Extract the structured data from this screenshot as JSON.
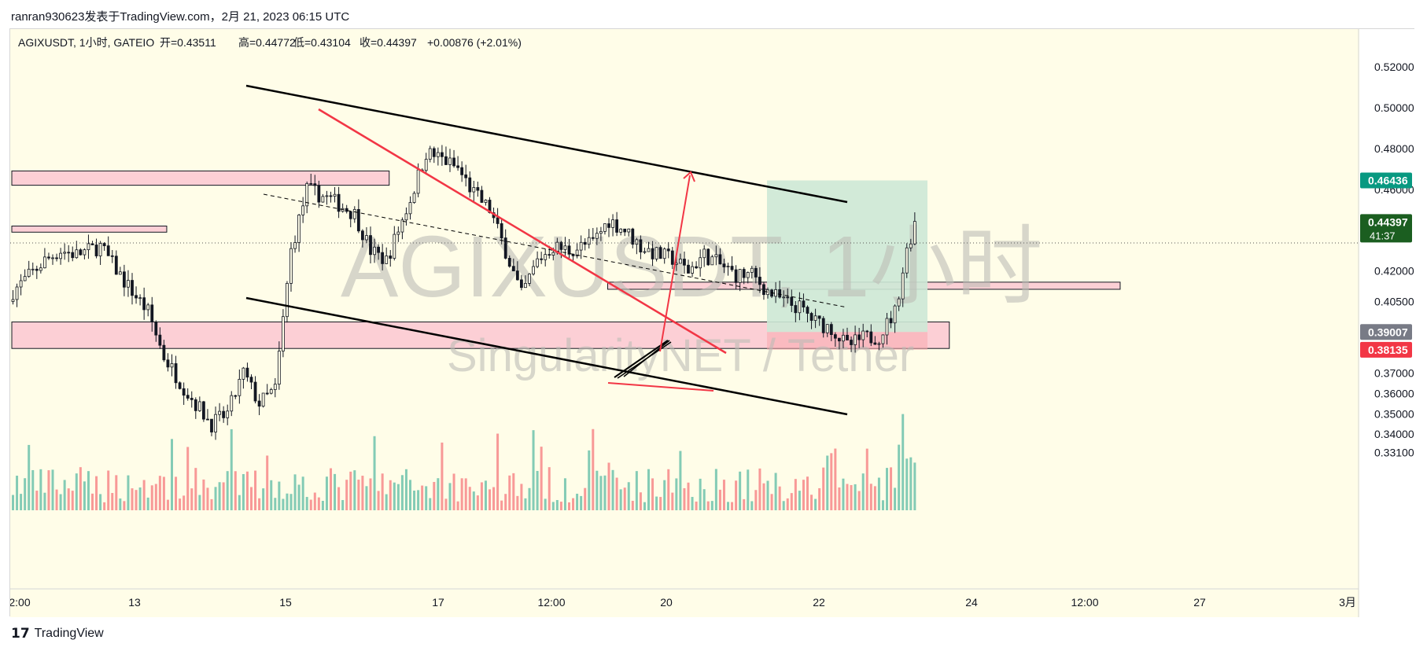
{
  "header": {
    "caption": "ranran930623发表于TradingView.com，2月 21, 2023 06:15 UTC"
  },
  "legend": {
    "symbol": "AGIXUSDT, 1小时, GATEIO",
    "open": "开=0.43511",
    "high": "高=0.44772",
    "low": "低=0.43104",
    "close": "收=0.44397",
    "change": "+0.00876 (+2.01%)"
  },
  "watermark": {
    "main": "AGIXUSDT, 1小时",
    "sub": "SingularityNET / Tether"
  },
  "price_labels": [
    {
      "text": "0.46436",
      "color": "#089981"
    },
    {
      "text": "0.44397",
      "color": "#1b5e20",
      "sub": "41:37"
    },
    {
      "text": "0.39007",
      "color": "#787b86"
    },
    {
      "text": "0.38135",
      "color": "#f23645"
    }
  ],
  "footer": {
    "brand": "TradingView",
    "logo": "17"
  },
  "chart_data": {
    "type": "candlestick",
    "symbol": "AGIXUSDT",
    "interval": "1小时",
    "exchange": "GATEIO",
    "y_ticks": [
      "0.52000",
      "0.50000",
      "0.48000",
      "0.46000",
      "0.42000",
      "0.40500",
      "0.37000",
      "0.36000",
      "0.35000",
      "0.34000",
      "0.33100"
    ],
    "x_ticks": [
      "2:00",
      "13",
      "15",
      "17",
      "12:00",
      "20",
      "22",
      "24",
      "12:00",
      "27",
      "3月"
    ],
    "ohlc_last": {
      "open": 0.43511,
      "high": 0.44772,
      "low": 0.43104,
      "close": 0.44397,
      "change": 0.00876,
      "change_pct": 2.01
    },
    "current_price": 0.44397,
    "position": {
      "entry": 0.39007,
      "target": 0.46436,
      "stop": 0.38135
    },
    "colors": {
      "up": "#089981",
      "down": "#f23645",
      "background": "#fffde8",
      "zone_fill": "#fccfd5",
      "target_zone": "#cde8d6",
      "stop_zone": "#f7a9ae"
    },
    "zones": [
      {
        "from": 0.462,
        "to": 0.469,
        "start": 0,
        "end": 95
      },
      {
        "from": 0.439,
        "to": 0.442,
        "start": 0,
        "end": 39
      },
      {
        "from": 0.411,
        "to": 0.4145,
        "start": 150,
        "end": 279
      },
      {
        "from": 0.382,
        "to": 0.395,
        "start": 0,
        "end": 236
      }
    ]
  }
}
